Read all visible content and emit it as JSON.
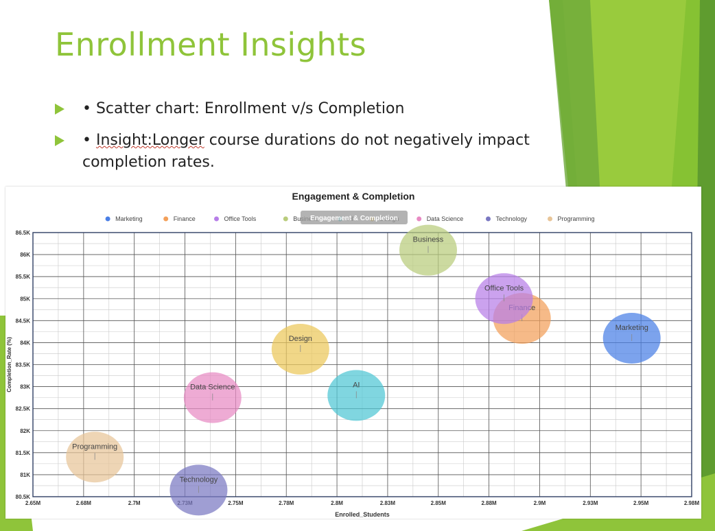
{
  "slide": {
    "title": "Enrollment Insights",
    "bullet1": "• Scatter chart: Enrollment v/s Completion",
    "bullet2_prefix": "• ",
    "bullet2_underlined": "Insight:Longer",
    "bullet2_rest": " course durations do not negatively impact completion rates.",
    "theme_color": "#8fc43a"
  },
  "chart_data": {
    "type": "scatter",
    "title": "Engagement & Completion",
    "overlay_label": "Engagement & Completion",
    "xlabel": "Enrolled_Students",
    "ylabel": "Completion_Rate (%)",
    "xlim": [
      2650000,
      2980000
    ],
    "ylim": [
      80500,
      86500
    ],
    "x_ticks": [
      "2.65M",
      "2.68M",
      "2.7M",
      "2.73M",
      "2.75M",
      "2.78M",
      "2.8M",
      "2.83M",
      "2.85M",
      "2.88M",
      "2.9M",
      "2.93M",
      "2.95M",
      "2.98M"
    ],
    "y_ticks": [
      "80.5K",
      "81K",
      "81.5K",
      "82K",
      "82.5K",
      "83K",
      "83.5K",
      "84K",
      "84.5K",
      "85K",
      "85.5K",
      "86K",
      "86.5K"
    ],
    "grid": true,
    "legend_position": "top",
    "series": [
      {
        "name": "Marketing",
        "color": "#4a7fe6",
        "x": 2950000,
        "y": 84100
      },
      {
        "name": "Finance",
        "color": "#f3a05a",
        "x": 2895000,
        "y": 84550
      },
      {
        "name": "Office Tools",
        "color": "#b77ee8",
        "x": 2886000,
        "y": 85000
      },
      {
        "name": "Business",
        "color": "#b9cc7c",
        "x": 2848000,
        "y": 86100
      },
      {
        "name": "AI",
        "color": "#4fc6d4",
        "x": 2812000,
        "y": 82800
      },
      {
        "name": "Design",
        "color": "#ecc85a",
        "x": 2784000,
        "y": 83850
      },
      {
        "name": "Data Science",
        "color": "#e88ac3",
        "x": 2740000,
        "y": 82750
      },
      {
        "name": "Technology",
        "color": "#7a78c2",
        "x": 2733000,
        "y": 80650
      },
      {
        "name": "Programming",
        "color": "#e8c598",
        "x": 2681000,
        "y": 81400
      }
    ]
  }
}
